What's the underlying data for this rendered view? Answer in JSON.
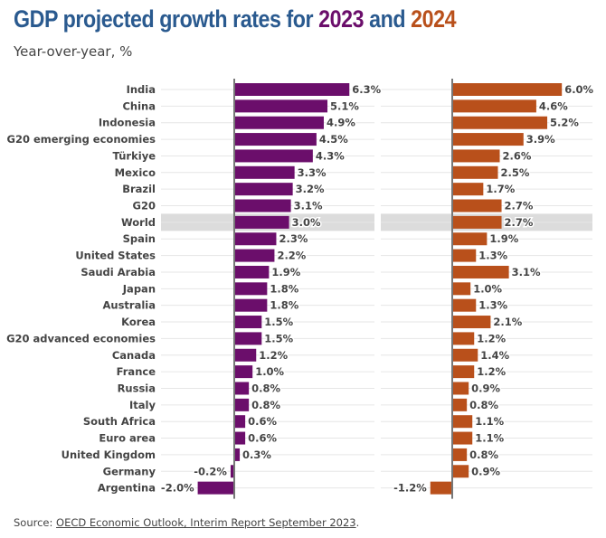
{
  "title": {
    "prefix": "GDP projected growth rates for ",
    "year1": "2023",
    "middle": " and ",
    "year2": "2024"
  },
  "subtitle": "Year-over-year, %",
  "source": {
    "prefix": "Source: ",
    "link_text": "OECD Economic Outlook, Interim Report September 2023",
    "suffix": "."
  },
  "colors": {
    "title": "#2a5a8f",
    "series_2023": "#6b0e6b",
    "series_2024": "#b9501b",
    "highlight": "#dcdcdc"
  },
  "chart_data": {
    "type": "bar",
    "orientation": "horizontal",
    "title": "GDP projected growth rates for 2023 and 2024",
    "subtitle": "Year-over-year, %",
    "xlabel": "",
    "ylabel": "",
    "grid": true,
    "highlighted_category": "World",
    "categories": [
      "India",
      "China",
      "Indonesia",
      "G20 emerging economies",
      "Türkiye",
      "Mexico",
      "Brazil",
      "G20",
      "World",
      "Spain",
      "United States",
      "Saudi Arabia",
      "Japan",
      "Australia",
      "Korea",
      "G20 advanced economies",
      "Canada",
      "France",
      "Russia",
      "Italy",
      "South Africa",
      "Euro area",
      "United Kingdom",
      "Germany",
      "Argentina"
    ],
    "series": [
      {
        "name": "2023",
        "color": "#6b0e6b",
        "values": [
          6.3,
          5.1,
          4.9,
          4.5,
          4.3,
          3.3,
          3.2,
          3.1,
          3.0,
          2.3,
          2.2,
          1.9,
          1.8,
          1.8,
          1.5,
          1.5,
          1.2,
          1.0,
          0.8,
          0.8,
          0.6,
          0.6,
          0.3,
          -0.2,
          -2.0
        ]
      },
      {
        "name": "2024",
        "color": "#b9501b",
        "values": [
          6.0,
          4.6,
          5.2,
          3.9,
          2.6,
          2.5,
          1.7,
          2.7,
          2.7,
          1.9,
          1.3,
          3.1,
          1.0,
          1.3,
          2.1,
          1.2,
          1.4,
          1.2,
          0.9,
          0.8,
          1.1,
          1.1,
          0.8,
          0.9,
          -1.2
        ]
      }
    ],
    "value_suffix": "%",
    "xlim": [
      -4.0,
      7.7
    ]
  }
}
